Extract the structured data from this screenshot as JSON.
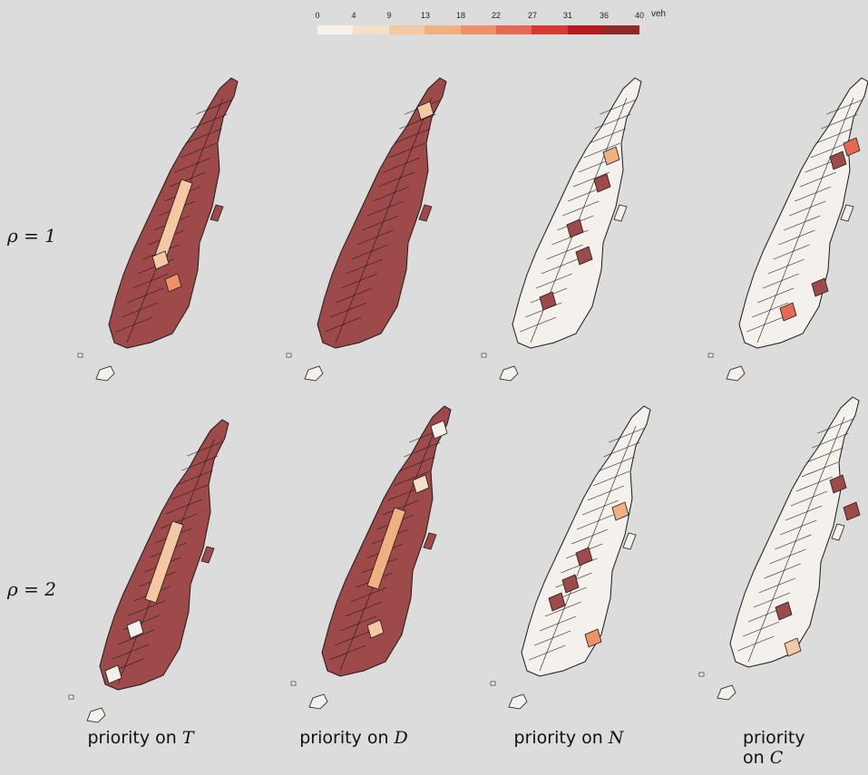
{
  "legend": {
    "ticks": [
      "0",
      "4",
      "9",
      "13",
      "18",
      "22",
      "27",
      "31",
      "36",
      "40"
    ],
    "unit": "veh",
    "colors": [
      "#f7f1ea",
      "#f5dfc8",
      "#f3c8a2",
      "#f1b082",
      "#ee9068",
      "#e46a55",
      "#d63a34",
      "#b51a22",
      "#8e2a2a"
    ]
  },
  "rows": [
    {
      "label_sym": "ρ",
      "label_rest": " = 1"
    },
    {
      "label_sym": "ρ",
      "label_rest": " = 2"
    }
  ],
  "columns": [
    {
      "prefix": "priority on ",
      "var": "T"
    },
    {
      "prefix": "priority on ",
      "var": "D"
    },
    {
      "prefix": "priority on ",
      "var": "N"
    },
    {
      "prefix": "priority on ",
      "var": "C"
    }
  ],
  "colors": {
    "dark": "#9f4a4a",
    "white": "#f4f0ec",
    "outline": "#1a1a1a"
  }
}
